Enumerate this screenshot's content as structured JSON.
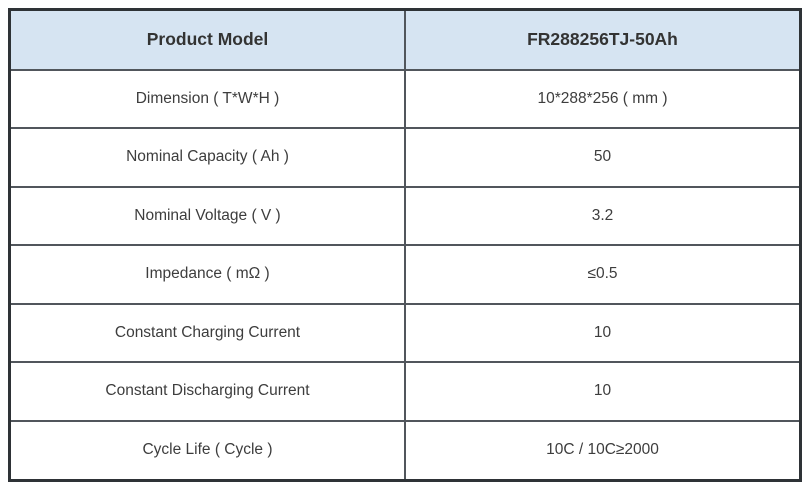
{
  "chart_data": {
    "type": "table",
    "columns": [
      "Product Model",
      "FR288256TJ-50Ah"
    ],
    "rows": [
      [
        "Dimension ( T*W*H )",
        "10*288*256 ( mm )"
      ],
      [
        "Nominal Capacity ( Ah )",
        "50"
      ],
      [
        "Nominal Voltage ( V )",
        "3.2"
      ],
      [
        "Impedance ( mΩ )",
        "≤0.5"
      ],
      [
        "Constant Charging Current",
        "10"
      ],
      [
        "Constant Discharging Current",
        "10"
      ],
      [
        "Cycle Life ( Cycle )",
        "10C / 10C≥2000"
      ]
    ],
    "colors": {
      "header_bg": "#d6e4f2",
      "border_outer": "#2e3236",
      "border_inner": "#51565c",
      "text": "#3d3d3d"
    }
  }
}
